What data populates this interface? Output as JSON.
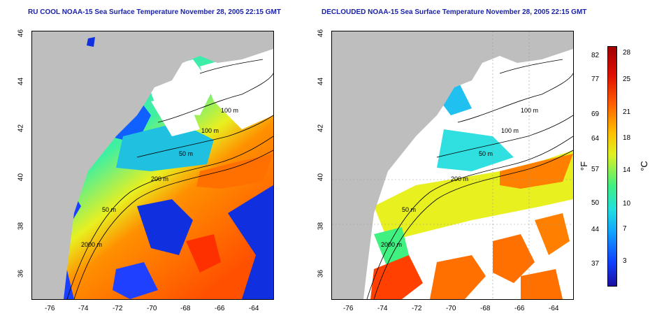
{
  "left_title": "RU COOL NOAA-15 Sea Surface Temperature November 28, 2005 22:15 GMT",
  "right_title": "DECLOUDED NOAA-15 Sea Surface Temperature November 28, 2005 22:15 GMT",
  "x_ticks": [
    "-76",
    "-74",
    "-72",
    "-70",
    "-68",
    "-66",
    "-64"
  ],
  "y_ticks": [
    "46",
    "44",
    "42",
    "40",
    "38",
    "36"
  ],
  "contours": {
    "c1": "100 m",
    "c2": "100 m",
    "c3": "50 m",
    "c4": "200 m",
    "c5": "50 m",
    "c6": "2000 m"
  },
  "colorbar": {
    "fahrenheit_unit": "°F",
    "celsius_unit": "°C",
    "fahrenheit_ticks": [
      "82",
      "77",
      "69",
      "64",
      "57",
      "50",
      "44",
      "37"
    ],
    "celsius_ticks": [
      "28",
      "25",
      "21",
      "18",
      "14",
      "10",
      "7",
      "3"
    ]
  },
  "colors": {
    "land": "#bebebe",
    "title": "#1a22a8",
    "cloud": "#ffffff"
  }
}
